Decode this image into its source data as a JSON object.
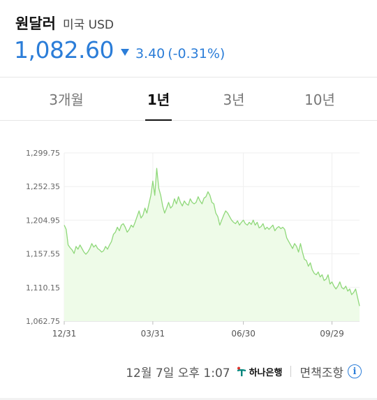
{
  "header": {
    "title": "원달러",
    "subtitle": "미국 USD",
    "price": "1,082.60",
    "change": "3.40",
    "change_pct": "(-0.31%)",
    "direction_icon": "triangle-down-icon",
    "accent_color": "#2b7dd8"
  },
  "tabs": [
    {
      "label": "3개월",
      "active": false
    },
    {
      "label": "1년",
      "active": true
    },
    {
      "label": "3년",
      "active": false
    },
    {
      "label": "10년",
      "active": false
    }
  ],
  "chart_data": {
    "type": "area",
    "series_color": "#8fd87a",
    "fill_color": "#eefbe8",
    "grid": true,
    "ylim": [
      1062.75,
      1299.75
    ],
    "y_ticks": [
      "1,299.75",
      "1,252.35",
      "1,204.95",
      "1,157.55",
      "1,110.15",
      "1,062.75"
    ],
    "y_tick_values": [
      1299.75,
      1252.35,
      1204.95,
      1157.55,
      1110.15,
      1062.75
    ],
    "x_ticks": [
      "12/31",
      "03/31",
      "06/30",
      "09/29"
    ],
    "x_tick_index": [
      0,
      45,
      91,
      136
    ],
    "values": [
      1198,
      1192,
      1170,
      1166,
      1163,
      1158,
      1168,
      1164,
      1170,
      1165,
      1160,
      1157,
      1160,
      1165,
      1172,
      1167,
      1170,
      1165,
      1163,
      1160,
      1162,
      1168,
      1164,
      1170,
      1175,
      1185,
      1188,
      1195,
      1190,
      1198,
      1200,
      1195,
      1188,
      1192,
      1198,
      1195,
      1202,
      1210,
      1218,
      1208,
      1212,
      1222,
      1215,
      1228,
      1240,
      1260,
      1240,
      1278,
      1250,
      1240,
      1225,
      1215,
      1222,
      1230,
      1222,
      1225,
      1235,
      1228,
      1238,
      1230,
      1225,
      1232,
      1228,
      1226,
      1235,
      1230,
      1228,
      1230,
      1238,
      1232,
      1228,
      1236,
      1238,
      1245,
      1240,
      1230,
      1228,
      1215,
      1210,
      1198,
      1205,
      1212,
      1218,
      1215,
      1210,
      1205,
      1202,
      1200,
      1204,
      1198,
      1202,
      1205,
      1200,
      1198,
      1202,
      1199,
      1205,
      1198,
      1202,
      1194,
      1196,
      1200,
      1192,
      1195,
      1192,
      1195,
      1198,
      1190,
      1194,
      1196,
      1193,
      1195,
      1192,
      1180,
      1175,
      1170,
      1165,
      1172,
      1168,
      1160,
      1172,
      1160,
      1150,
      1148,
      1140,
      1145,
      1135,
      1130,
      1128,
      1132,
      1125,
      1128,
      1120,
      1122,
      1128,
      1115,
      1118,
      1112,
      1108,
      1112,
      1118,
      1110,
      1108,
      1112,
      1105,
      1108,
      1100,
      1103,
      1108,
      1096,
      1084
    ]
  },
  "footer": {
    "timestamp": "12월 7일 오후 1:07",
    "bank_name": "하나은행",
    "bank_logo_icon": "hana-bank-logo-icon",
    "disclaimer": "면책조항",
    "info_icon": "info-icon",
    "info_glyph": "i"
  }
}
